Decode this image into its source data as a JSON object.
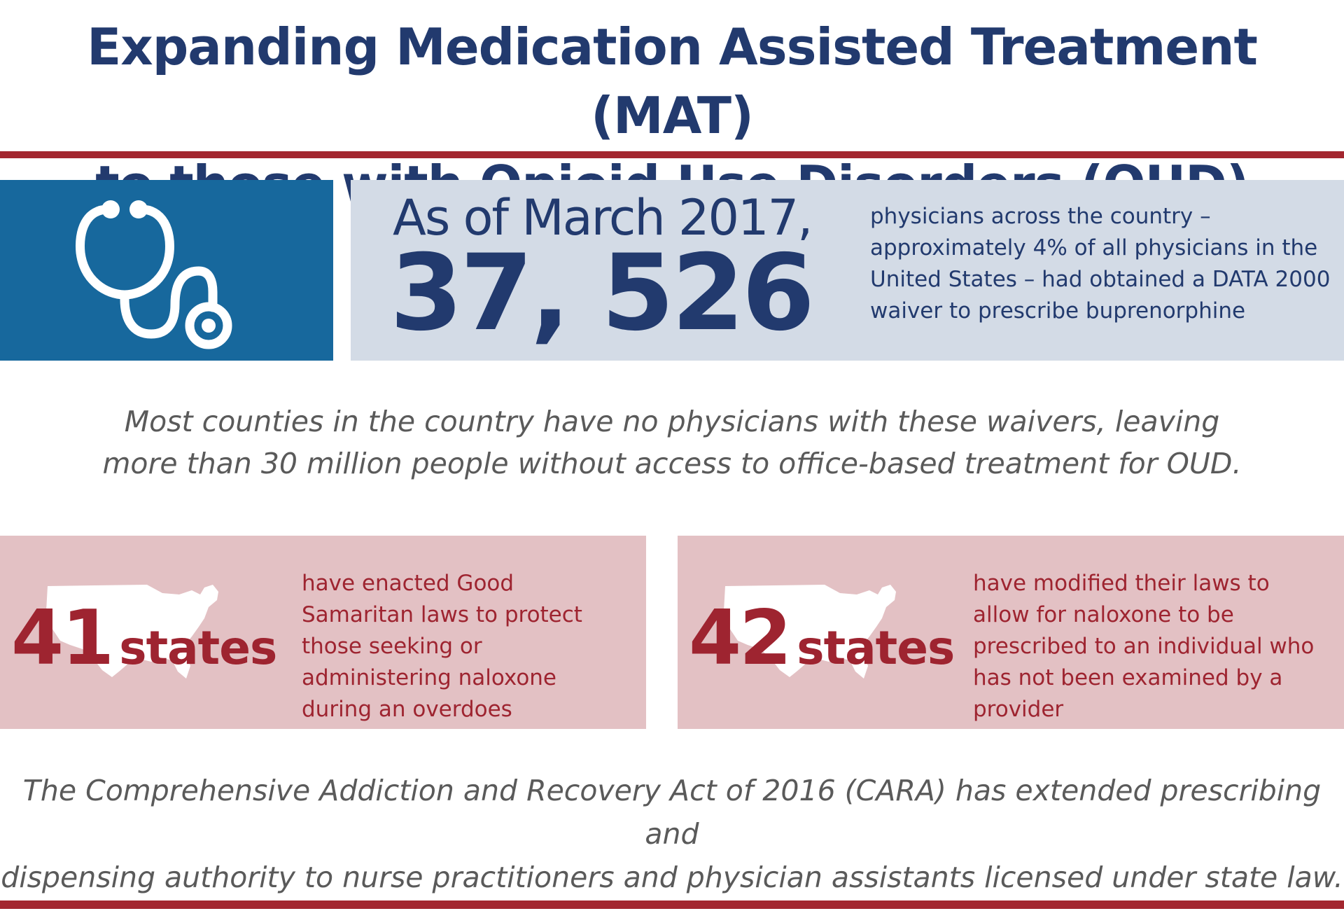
{
  "header": {
    "title_line1": "Expanding Medication Assisted Treatment (MAT)",
    "title_line2": "to those with Opioid Use Disorders (OUD)"
  },
  "physician_stat": {
    "icon": "stethoscope-icon",
    "as_of": "As of March 2017,",
    "number": "37, 526",
    "description": "physicians across the country – approximately 4% of all physicians in the United States – had obtained a DATA 2000 waiver to prescribe buprenorphine"
  },
  "counties_note": {
    "line1": "Most counties in the country have no physicians with these waivers, leaving",
    "line2": "more than 30 million people without access to office-based treatment for OUD."
  },
  "state_stats": [
    {
      "number": "41",
      "unit": "states",
      "icon": "us-map-icon",
      "description": "have enacted Good Samaritan laws to protect those seeking or administering naloxone during an overdoes"
    },
    {
      "number": "42",
      "unit": "states",
      "icon": "us-map-icon",
      "description": "have modified their laws to allow for naloxone to be prescribed to an individual who has not been examined by a provider"
    }
  ],
  "cara_note": {
    "line1": "The Comprehensive Addiction and Recovery Act of 2016 (CARA) has extended prescribing and",
    "line2": "dispensing authority to nurse practitioners and physician assistants licensed under state law."
  },
  "colors": {
    "navy": "#223a6e",
    "accent_red": "#a3262f",
    "icon_blue": "#17689d",
    "stat_bg": "#d3dbe6",
    "state_bg": "#e3c1c4",
    "body_gray": "#5a5a5a"
  }
}
